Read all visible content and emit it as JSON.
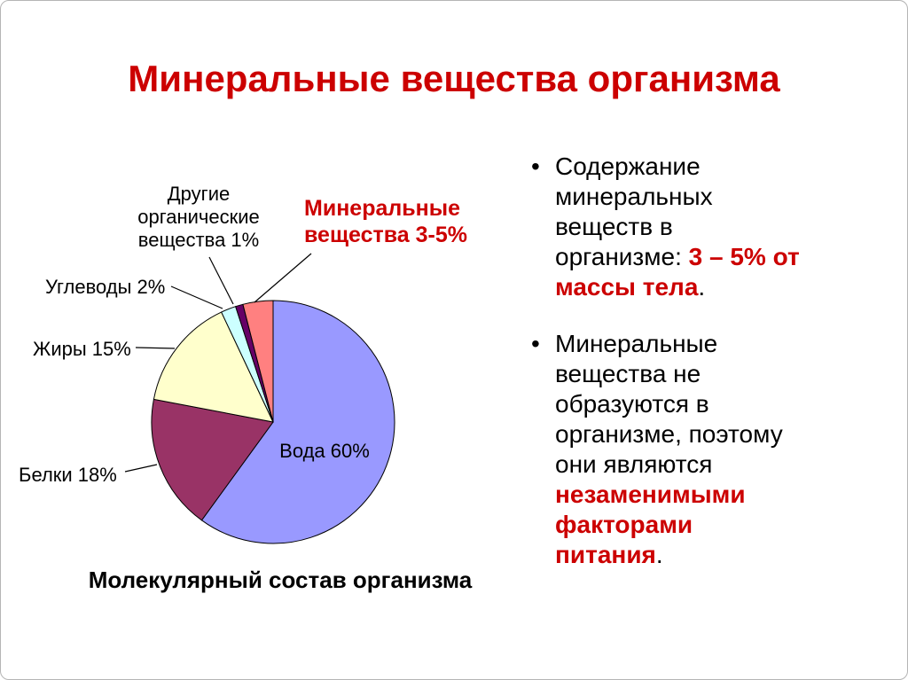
{
  "slide": {
    "title": "Минеральные вещества организма"
  },
  "colors": {
    "accent_red": "#cc0000",
    "text_black": "#000000"
  },
  "chart_data": {
    "type": "pie",
    "title": "Молекулярный состав организма",
    "start_angle_deg": 0,
    "direction": "clockwise",
    "legend": "none",
    "slices": [
      {
        "name": "water",
        "label": "Вода 60%",
        "value": 60,
        "color": "#9999FF",
        "label_position": "inside"
      },
      {
        "name": "proteins",
        "label": "Белки 18%",
        "value": 18,
        "color": "#993366",
        "label_position": "callout"
      },
      {
        "name": "fats",
        "label": "Жиры 15%",
        "value": 15,
        "color": "#FFFFCC",
        "label_position": "callout"
      },
      {
        "name": "carbohydrates",
        "label": "Углеводы 2%",
        "value": 2,
        "color": "#CCFFFF",
        "label_position": "callout"
      },
      {
        "name": "other-organic",
        "label": "Другие органические вещества 1%",
        "value": 1,
        "color": "#660066",
        "label_position": "callout"
      },
      {
        "name": "minerals",
        "label": "Минеральные вещества 3-5%",
        "value": 4,
        "color": "#FF8080",
        "label_position": "callout",
        "emphasized": true
      }
    ]
  },
  "bullets": {
    "items": [
      {
        "parts": [
          {
            "text": "Содержание минеральных веществ в организме: ",
            "emphasis": false
          },
          {
            "text": "3 – 5% от массы тела",
            "emphasis": true
          },
          {
            "text": ".",
            "emphasis": false
          }
        ]
      },
      {
        "parts": [
          {
            "text": "Минеральные вещества не образуются в организме, поэтому они являются ",
            "emphasis": false
          },
          {
            "text": "незаменимыми факторами питания",
            "emphasis": true
          },
          {
            "text": ".",
            "emphasis": false
          }
        ]
      }
    ]
  }
}
